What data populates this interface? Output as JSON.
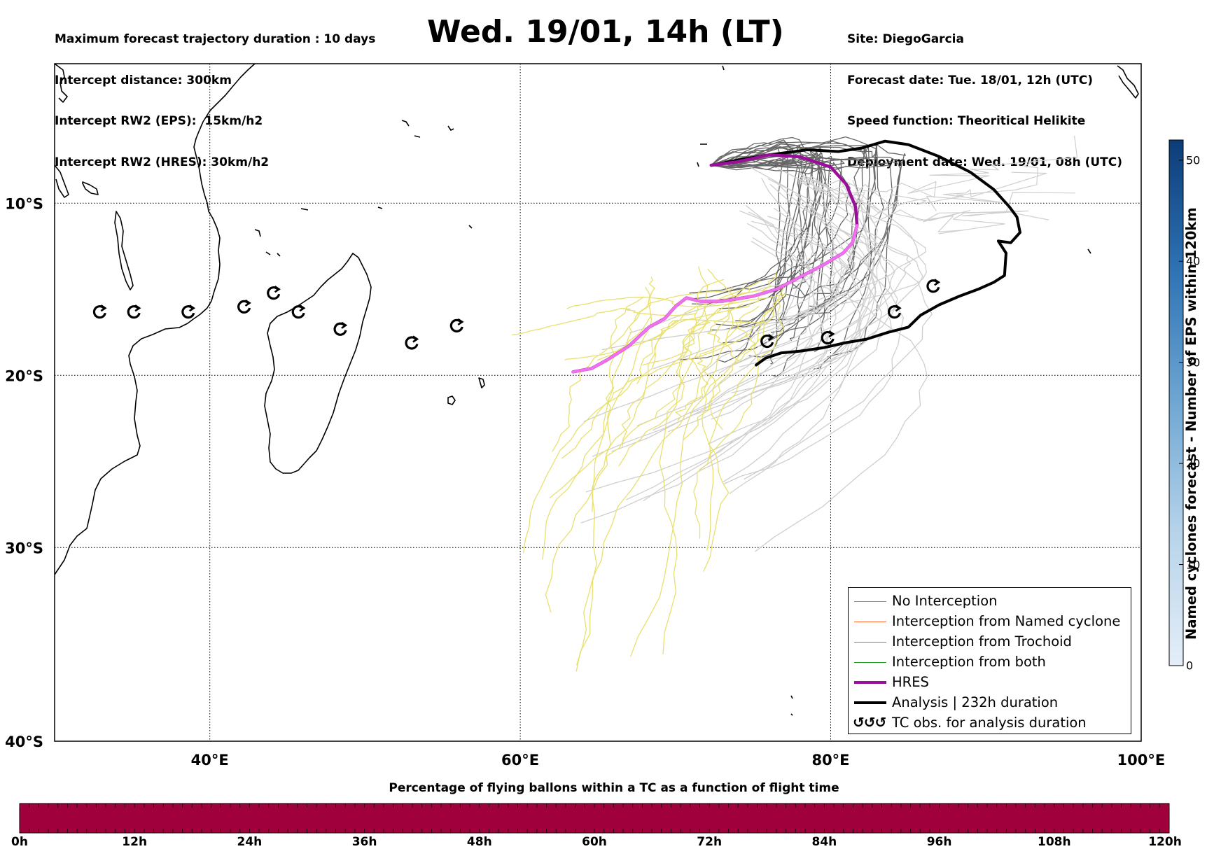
{
  "header": {
    "title": "Wed. 19/01, 14h (LT)",
    "left_lines": [
      "Maximum forecast trajectory duration : 10 days",
      "Intercept distance: 300km",
      "Intercept RW2 (EPS):  15km/h2",
      "Intercept RW2 (HRES): 30km/h2"
    ],
    "right_lines": [
      "Site: DiegoGarcia",
      "Forecast date: Tue. 18/01, 12h (UTC)",
      "Speed function: Theoritical Helikite",
      "Deployment date: Wed. 19/01, 08h (UTC)"
    ]
  },
  "map": {
    "lon_range": [
      30,
      100
    ],
    "lat_range": [
      -40,
      -1
    ],
    "lon_ticks": [
      {
        "value": 40,
        "label": "40°E"
      },
      {
        "value": 60,
        "label": "60°E"
      },
      {
        "value": 80,
        "label": "80°E"
      },
      {
        "value": 100,
        "label": "100°E"
      }
    ],
    "lat_ticks": [
      {
        "value": -10,
        "label": "10°S"
      },
      {
        "value": -20,
        "label": "20°S"
      },
      {
        "value": -30,
        "label": "30°S"
      },
      {
        "value": -40,
        "label": "40°S"
      }
    ],
    "colors": {
      "no_interception": "#888888",
      "named_cyclone": "#ff6a2a",
      "trochoid": "#8b8b10",
      "both": "#1a9a1a",
      "hres": "#9a0f9a",
      "hres_highlight": "#f070f0",
      "analysis": "#000000",
      "eps_light": "#cfcfcf",
      "eps_dark": "#666666",
      "eps_yellow": "#e8e070"
    },
    "hres_track": [
      [
        72.3,
        -7.8
      ],
      [
        74,
        -7.6
      ],
      [
        76,
        -7.2
      ],
      [
        78,
        -7.3
      ],
      [
        80,
        -7.9
      ],
      [
        81,
        -8.9
      ],
      [
        81.6,
        -10.2
      ],
      [
        81.7,
        -11.3
      ],
      [
        81.4,
        -12.3
      ],
      [
        80.8,
        -12.9
      ],
      [
        79.5,
        -13.6
      ],
      [
        78,
        -14.3
      ],
      [
        76.5,
        -15
      ],
      [
        75,
        -15.4
      ],
      [
        73,
        -15.7
      ],
      [
        71.6,
        -15.7
      ],
      [
        70.7,
        -15.5
      ],
      [
        70,
        -16
      ],
      [
        69.3,
        -16.7
      ],
      [
        68.3,
        -17.2
      ],
      [
        67,
        -18.3
      ],
      [
        65.6,
        -19.1
      ],
      [
        64.6,
        -19.6
      ],
      [
        63.4,
        -19.8
      ]
    ],
    "hres_highlight_segments": [
      [
        0.6,
        1.0
      ]
    ],
    "analysis_track": [
      [
        72.3,
        -7.8
      ],
      [
        74,
        -7.5
      ],
      [
        76,
        -7.2
      ],
      [
        78.5,
        -6.9
      ],
      [
        80.5,
        -7
      ],
      [
        82,
        -6.8
      ],
      [
        83.5,
        -6.4
      ],
      [
        85,
        -6.6
      ],
      [
        87,
        -7.3
      ],
      [
        89,
        -8.2
      ],
      [
        90.5,
        -9.2
      ],
      [
        91.5,
        -10.2
      ],
      [
        92,
        -10.8
      ],
      [
        92.2,
        -11.7
      ],
      [
        91.6,
        -12.3
      ],
      [
        90.8,
        -12.2
      ],
      [
        91.3,
        -12.9
      ],
      [
        91.2,
        -14.2
      ],
      [
        90.5,
        -14.6
      ],
      [
        89.5,
        -15
      ],
      [
        88.3,
        -15.4
      ],
      [
        87,
        -15.9
      ],
      [
        85.8,
        -16.5
      ],
      [
        85,
        -17.2
      ],
      [
        83.7,
        -17.5
      ],
      [
        82.3,
        -17.9
      ],
      [
        81,
        -18.1
      ],
      [
        79.5,
        -18.4
      ],
      [
        78,
        -18.6
      ],
      [
        76.8,
        -18.7
      ],
      [
        75.8,
        -19
      ],
      [
        75.2,
        -19.4
      ]
    ],
    "tc_obs": [
      [
        32.9,
        -16.3
      ],
      [
        35.1,
        -16.3
      ],
      [
        38.6,
        -16.3
      ],
      [
        42.2,
        -16
      ],
      [
        44.1,
        -15.2
      ],
      [
        45.7,
        -16.3
      ],
      [
        48.4,
        -17.3
      ],
      [
        53,
        -18.1
      ],
      [
        55.9,
        -17.1
      ],
      [
        75.9,
        -18
      ],
      [
        79.8,
        -17.8
      ],
      [
        84.1,
        -16.3
      ],
      [
        86.6,
        -14.8
      ]
    ]
  },
  "legend": {
    "no_interception": "No Interception",
    "named_cyclone": "Interception from Named cyclone",
    "trochoid": "Interception from Trochoid",
    "both": "Interception from both",
    "hres": "HRES",
    "analysis": "Analysis | 232h duration",
    "tc_obs": "TC obs. for analysis duration",
    "tc_obs_symbol": "↺↺↺"
  },
  "colorbar_right": {
    "title": "Named cyclones forecast - Number of EPS within 120km",
    "range": [
      0,
      52
    ],
    "ticks": [
      0,
      10,
      20,
      30,
      40,
      50
    ],
    "color_low": "#e4eef8",
    "color_high": "#0c3c78"
  },
  "colorbar_bottom": {
    "title": "Percentage of flying ballons within a TC as a function of flight time",
    "color": "#a0003c",
    "labels": [
      "0h",
      "12h",
      "24h",
      "36h",
      "48h",
      "60h",
      "72h",
      "84h",
      "96h",
      "108h",
      "120h"
    ]
  }
}
